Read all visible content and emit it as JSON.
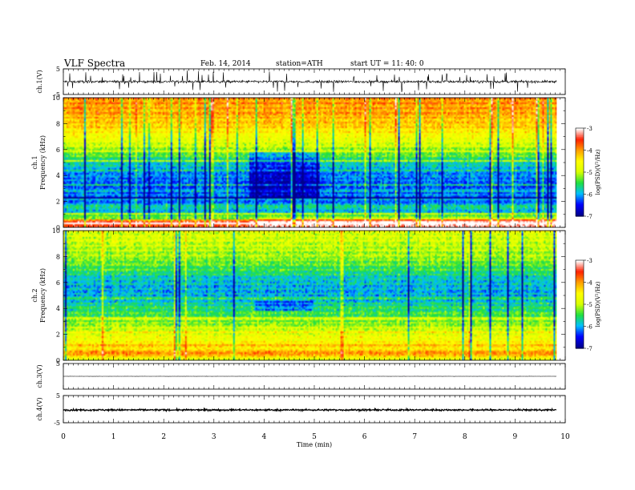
{
  "header": {
    "title": "VLF  Spectra",
    "date": "Feb. 14, 2014",
    "station": "station=ATH",
    "start": "start  UT  =   11: 40: 0"
  },
  "chart_data": {
    "type": "heatmap",
    "xlabel": "Time  (min)",
    "xlim": [
      0,
      10
    ],
    "xticks": [
      "0",
      "1",
      "2",
      "3",
      "4",
      "5",
      "6",
      "7",
      "8",
      "9",
      "10"
    ],
    "data_end_min": 9.83,
    "panels": [
      {
        "id": "ch1v",
        "type": "line",
        "ylabel": "ch.1(V)",
        "ylim": [
          -5,
          5
        ],
        "yticks": [
          {
            "v": 5,
            "t": "5"
          },
          {
            "v": -5,
            "t": "-5"
          }
        ],
        "mean": 0.0,
        "noise": 0.5,
        "spike_rate": 0.18,
        "spike_amp": 4.0
      },
      {
        "id": "ch1s",
        "type": "heatmap",
        "ylabel": [
          "ch.1",
          "Frequency  (kHz)"
        ],
        "ylim": [
          0,
          10
        ],
        "yticks": [
          {
            "v": 0,
            "t": "0"
          },
          {
            "v": 2,
            "t": "2"
          },
          {
            "v": 4,
            "t": "4"
          },
          {
            "v": 6,
            "t": "6"
          },
          {
            "v": 8,
            "t": "8"
          },
          {
            "v": 10,
            "t": "10"
          }
        ],
        "profile": [
          [
            0,
            -3.6
          ],
          [
            0.4,
            -3.3
          ],
          [
            0.8,
            -5.2
          ],
          [
            1.2,
            -6.0
          ],
          [
            2.0,
            -6.2
          ],
          [
            3.0,
            -6.3
          ],
          [
            4.0,
            -6.3
          ],
          [
            5.0,
            -5.8
          ],
          [
            6.0,
            -5.2
          ],
          [
            7.0,
            -4.7
          ],
          [
            8.0,
            -4.3
          ],
          [
            9.0,
            -4.1
          ],
          [
            10.0,
            -4.0
          ]
        ],
        "lines": [
          [
            0.35,
            0.5
          ],
          [
            0.7,
            -0.8
          ],
          [
            1.05,
            0.5
          ],
          [
            1.6,
            0.4
          ],
          [
            2.25,
            -0.8
          ],
          [
            2.8,
            0.4
          ],
          [
            3.3,
            0.4
          ],
          [
            3.9,
            0.3
          ],
          [
            4.4,
            0.3
          ],
          [
            5.1,
            0.4
          ],
          [
            5.9,
            0.2
          ]
        ],
        "dark_patch": {
          "t0": 3.7,
          "t1": 5.1,
          "f0": 2.2,
          "f1": 5.8,
          "delta": -0.6
        }
      },
      {
        "id": "ch2s",
        "type": "heatmap",
        "ylabel": [
          "ch.2",
          "Frequency  (kHz)"
        ],
        "ylim": [
          0,
          10
        ],
        "yticks": [
          {
            "v": 0,
            "t": "0"
          },
          {
            "v": 2,
            "t": "2"
          },
          {
            "v": 4,
            "t": "4"
          },
          {
            "v": 6,
            "t": "6"
          },
          {
            "v": 8,
            "t": "8"
          },
          {
            "v": 10,
            "t": "10"
          }
        ],
        "profile": [
          [
            0,
            -4.8
          ],
          [
            0.6,
            -4.2
          ],
          [
            1.0,
            -4.5
          ],
          [
            2.0,
            -4.9
          ],
          [
            3.0,
            -5.3
          ],
          [
            4.0,
            -5.7
          ],
          [
            5.0,
            -6.1
          ],
          [
            6.0,
            -6.0
          ],
          [
            7.0,
            -5.6
          ],
          [
            8.0,
            -5.2
          ],
          [
            9.0,
            -5.0
          ],
          [
            10.0,
            -4.9
          ]
        ],
        "lines": [
          [
            0.5,
            0.4
          ],
          [
            1.2,
            0.5
          ],
          [
            2.2,
            0.4
          ],
          [
            3.2,
            0.3
          ],
          [
            4.1,
            0.3
          ],
          [
            4.8,
            0.3
          ]
        ],
        "dark_patch": {
          "t0": 3.8,
          "t1": 5.0,
          "f0": 3.8,
          "f1": 4.6,
          "delta": -0.5
        }
      },
      {
        "id": "ch3v",
        "type": "line",
        "ylabel": "ch.3(V)",
        "ylim": [
          -5,
          5
        ],
        "yticks": [
          {
            "v": 5,
            "t": "5"
          },
          {
            "v": -5,
            "t": ""
          }
        ],
        "mean": 0.0,
        "noise": 0.04,
        "spike_rate": 0,
        "spike_amp": 0
      },
      {
        "id": "ch4v",
        "type": "line",
        "ylabel": "ch.4(V)",
        "ylim": [
          -5,
          5
        ],
        "yticks": [
          {
            "v": 5,
            "t": "5"
          },
          {
            "v": -5,
            "t": "-5"
          }
        ],
        "mean": -0.3,
        "noise": 0.3,
        "spike_rate": 0,
        "spike_amp": 0
      }
    ],
    "colorbar": {
      "label": "log(PSD)(V²/Hz)",
      "range": [
        -7,
        -3
      ],
      "ticks": [
        "-3",
        "-4",
        "-5",
        "-6",
        "-7"
      ],
      "stops": [
        "#00008c",
        "#0000ff",
        "#00bfff",
        "#20e040",
        "#d8ff00",
        "#ffff00",
        "#ffa000",
        "#ff2000",
        "#ffffff"
      ]
    }
  }
}
